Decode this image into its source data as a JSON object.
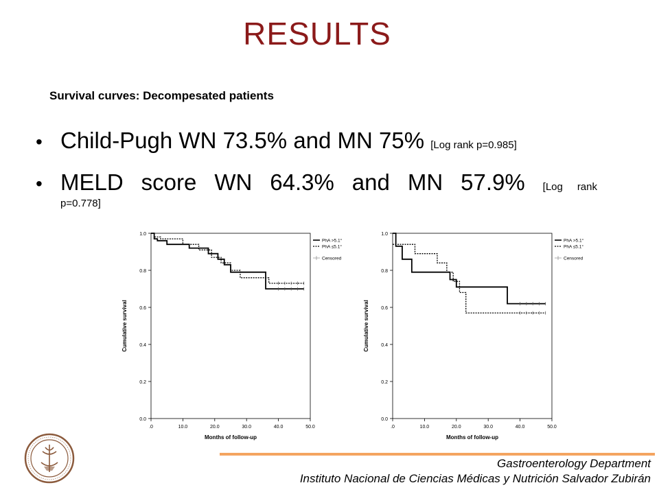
{
  "slide": {
    "title": "RESULTS",
    "subtitle": "Survival curves: Decompesated patients",
    "bullets": [
      {
        "main": "Child-Pugh WN 73.5% and MN 75%",
        "note": "[Log rank p=0.985]"
      },
      {
        "main": "MELD score WN 64.3% and MN 57.9%",
        "note": "[Log rank",
        "note_cont": "p=0.778]"
      }
    ],
    "footer": {
      "department": "Gastroenterology Department",
      "institute": "Instituto Nacional de Ciencias Médicas y Nutrición Salvador Zubirán"
    }
  },
  "chart_data": [
    {
      "type": "line",
      "step": true,
      "xlabel": "Months of follow-up",
      "ylabel": "Cumulative survival",
      "xlim": [
        0,
        50
      ],
      "ylim": [
        0,
        1
      ],
      "xticks": [
        ".0",
        "10.0",
        "20.0",
        "30.0",
        "40.0",
        "50.0"
      ],
      "yticks": [
        "0.0",
        "0.2",
        "0.4",
        "0.6",
        "0.8",
        "1.0"
      ],
      "legend": {
        "position": "top-right",
        "entries": [
          "PhA >5.1°",
          "PhA ≤5.1°",
          "Censored"
        ]
      },
      "series": [
        {
          "name": "PhA >5.1°",
          "style": "solid",
          "x": [
            0,
            1,
            2,
            5,
            12,
            18,
            21,
            23,
            25,
            36,
            48
          ],
          "y": [
            1.0,
            0.97,
            0.96,
            0.94,
            0.92,
            0.89,
            0.86,
            0.83,
            0.79,
            0.7,
            0.7
          ],
          "censored": [
            40,
            42,
            44,
            46,
            48
          ]
        },
        {
          "name": "PhA ≤5.1°",
          "style": "dotted",
          "x": [
            0,
            1,
            3,
            10,
            15,
            19,
            22,
            25,
            28,
            37,
            48
          ],
          "y": [
            1.0,
            0.98,
            0.97,
            0.94,
            0.91,
            0.87,
            0.84,
            0.8,
            0.76,
            0.73,
            0.73
          ],
          "censored": [
            40,
            42,
            44,
            46,
            48
          ]
        }
      ]
    },
    {
      "type": "line",
      "step": true,
      "xlabel": "Months of follow-up",
      "ylabel": "Cumulative survival",
      "xlim": [
        0,
        50
      ],
      "ylim": [
        0,
        1
      ],
      "xticks": [
        ".0",
        "10.0",
        "20.0",
        "30.0",
        "40.0",
        "50.0"
      ],
      "yticks": [
        "0.0",
        "0.2",
        "0.4",
        "0.6",
        "0.8",
        "1.0"
      ],
      "legend": {
        "position": "top-right",
        "entries": [
          "PhA >5.1°",
          "PhA ≤5.1°",
          "Censored"
        ]
      },
      "series": [
        {
          "name": "PhA >5.1°",
          "style": "solid",
          "x": [
            0,
            1,
            3,
            6,
            18,
            20,
            36,
            48
          ],
          "y": [
            1.0,
            0.93,
            0.86,
            0.79,
            0.75,
            0.71,
            0.62,
            0.62
          ],
          "censored": [
            40,
            42,
            44,
            46,
            48
          ]
        },
        {
          "name": "PhA ≤5.1°",
          "style": "dotted",
          "x": [
            0,
            7,
            14,
            17,
            19,
            21,
            23,
            48
          ],
          "y": [
            0.94,
            0.89,
            0.84,
            0.79,
            0.74,
            0.68,
            0.57,
            0.57
          ],
          "censored": [
            40,
            42,
            44,
            46,
            48
          ]
        }
      ]
    }
  ]
}
